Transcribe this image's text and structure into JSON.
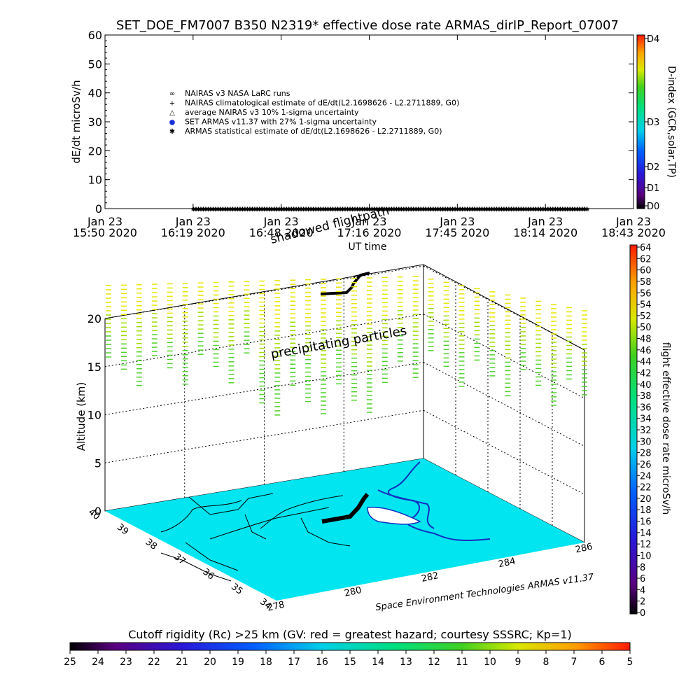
{
  "chart_data": [
    {
      "type": "scatter",
      "title": "SET_DOE_FM7007   B350 N2319* effective dose rate ARMAS_dirIP_Report_07007",
      "xlabel": "UT time",
      "ylabel": "dE/dt microSv/h",
      "ylim": [
        0,
        60
      ],
      "yticks": [
        "0",
        "10",
        "20",
        "30",
        "40",
        "50",
        "60"
      ],
      "xticks": [
        [
          "Jan 23",
          "15:50 2020"
        ],
        [
          "Jan 23",
          "16:19 2020"
        ],
        [
          "Jan 23",
          "16:48 2020"
        ],
        [
          "Jan 23",
          "17:16 2020"
        ],
        [
          "Jan 23",
          "17:45 2020"
        ],
        [
          "Jan 23",
          "18:14 2020"
        ],
        [
          "Jan 23",
          "18:43 2020"
        ]
      ],
      "xrange_minutes": [
        0,
        173
      ],
      "series": [
        {
          "name": "ARMAS statistical estimate of dE/dt(L2.1698626 - L2.2711889, G0)",
          "x_minutes_range": [
            29,
            158
          ],
          "value": 0
        }
      ],
      "legend": [
        {
          "symbol": "∞",
          "label": "NAIRAS v3 NASA LaRC runs",
          "color": "#000000"
        },
        {
          "symbol": "+",
          "label": "NAIRAS climatological estimate of dE/dt(L2.1698626 - L2.2711889, G0)",
          "color": "#000000"
        },
        {
          "symbol": "△",
          "label": "average NAIRAS v3 10% 1-sigma uncertainty",
          "color": "#000000"
        },
        {
          "symbol": "●",
          "label": "SET ARMAS v11.37 with 27% 1-sigma uncertainty",
          "color": "#1a2fe0"
        },
        {
          "symbol": "✱",
          "label": "ARMAS statistical estimate of dE/dt(L2.1698626 - L2.2711889, G0)",
          "color": "#000000"
        }
      ],
      "legend_placement": "upper-left",
      "right_colorbar": {
        "label": "D-index (GCR,solar,TP)",
        "ticks": [
          "D0",
          "D1",
          "D2",
          "D3",
          "D4"
        ],
        "tick_values": [
          0,
          4,
          9,
          50,
          1000
        ]
      }
    },
    {
      "type": "scatter3d",
      "ylabel": "Altitude (km)",
      "zticks": [
        "0",
        "5",
        "10",
        "15",
        "20"
      ],
      "lat_ticks": [
        "34",
        "35",
        "36",
        "37",
        "38",
        "39",
        "40"
      ],
      "lon_ticks": [
        "278",
        "280",
        "282",
        "284",
        "286"
      ],
      "annotations": [
        "shadowed flightpath",
        "precipitating particles"
      ],
      "credit": "Space Environment Technologies ARMAS v11.37",
      "right_colorbar": {
        "label": "flight effective dose rate microSv/h",
        "ticks": [
          "0",
          "2",
          "4",
          "6",
          "8",
          "10",
          "12",
          "14",
          "16",
          "18",
          "20",
          "22",
          "24",
          "26",
          "28",
          "30",
          "32",
          "34",
          "36",
          "38",
          "40",
          "42",
          "44",
          "46",
          "48",
          "50",
          "52",
          "54",
          "56",
          "58",
          "60",
          "62",
          "64"
        ]
      },
      "bottom_colorbar": {
        "label": "Cutoff rigidity (Rc) >25 km (GV: red = greatest hazard; courtesy SSSRC; Kp=1)",
        "ticks": [
          "25",
          "24",
          "23",
          "22",
          "21",
          "20",
          "19",
          "18",
          "17",
          "16",
          "15",
          "14",
          "13",
          "12",
          "11",
          "10",
          "9",
          "8",
          "7",
          "6",
          "5"
        ]
      },
      "surface_color": "#00e5f0",
      "particle_colors": {
        "high": "#e6e600",
        "mid": "#9fdc00",
        "low": "#4fd12a"
      }
    }
  ]
}
